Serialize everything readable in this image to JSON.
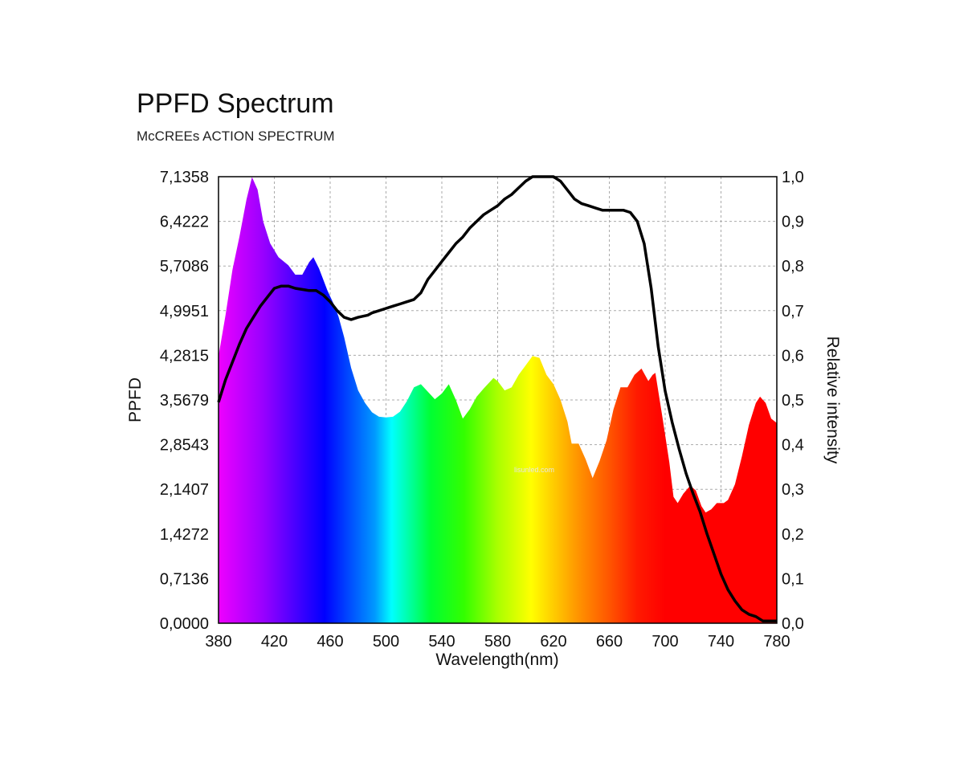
{
  "title": "PPFD Spectrum",
  "subtitle": "McCREEs ACTION SPECTRUM",
  "watermark": "lisunled.com",
  "chart_data": {
    "type": "area",
    "xlabel": "Wavelength(nm)",
    "ylabel": "PPFD",
    "y2label": "Relative intensity",
    "xlim": [
      380,
      780
    ],
    "ylim": [
      0,
      7.1358
    ],
    "y2lim": [
      0,
      1.0
    ],
    "grid": true,
    "x_ticks": [
      "380",
      "420",
      "460",
      "500",
      "540",
      "580",
      "620",
      "660",
      "700",
      "740",
      "780"
    ],
    "y_ticks": [
      "0,0000",
      "0,7136",
      "1,4272",
      "2,1407",
      "2,8543",
      "3,5679",
      "4,2815",
      "4,9951",
      "5,7086",
      "6,4222",
      "7,1358"
    ],
    "y2_ticks": [
      "0,0",
      "0,1",
      "0,2",
      "0,3",
      "0,4",
      "0,5",
      "0,6",
      "0,7",
      "0,8",
      "0,9",
      "1,0"
    ],
    "series": [
      {
        "axis": "left",
        "fill": "visible-spectrum",
        "points": [
          [
            380,
            4.27
          ],
          [
            385,
            4.92
          ],
          [
            390,
            5.65
          ],
          [
            395,
            6.18
          ],
          [
            400,
            6.77
          ],
          [
            404,
            7.13
          ],
          [
            408,
            6.93
          ],
          [
            412,
            6.42
          ],
          [
            417,
            6.07
          ],
          [
            423,
            5.85
          ],
          [
            430,
            5.72
          ],
          [
            435,
            5.57
          ],
          [
            440,
            5.57
          ],
          [
            445,
            5.77
          ],
          [
            448,
            5.85
          ],
          [
            452,
            5.67
          ],
          [
            458,
            5.32
          ],
          [
            463,
            5.08
          ],
          [
            466,
            4.9
          ],
          [
            470,
            4.57
          ],
          [
            475,
            4.08
          ],
          [
            480,
            3.72
          ],
          [
            485,
            3.52
          ],
          [
            490,
            3.37
          ],
          [
            495,
            3.3
          ],
          [
            500,
            3.29
          ],
          [
            505,
            3.3
          ],
          [
            510,
            3.38
          ],
          [
            515,
            3.55
          ],
          [
            520,
            3.77
          ],
          [
            525,
            3.82
          ],
          [
            530,
            3.7
          ],
          [
            535,
            3.58
          ],
          [
            540,
            3.67
          ],
          [
            545,
            3.82
          ],
          [
            550,
            3.57
          ],
          [
            555,
            3.27
          ],
          [
            560,
            3.42
          ],
          [
            565,
            3.62
          ],
          [
            570,
            3.75
          ],
          [
            577,
            3.92
          ],
          [
            580,
            3.87
          ],
          [
            585,
            3.72
          ],
          [
            590,
            3.77
          ],
          [
            595,
            3.97
          ],
          [
            600,
            4.12
          ],
          [
            605,
            4.27
          ],
          [
            610,
            4.24
          ],
          [
            615,
            3.97
          ],
          [
            620,
            3.82
          ],
          [
            625,
            3.57
          ],
          [
            630,
            3.22
          ],
          [
            633,
            2.87
          ],
          [
            638,
            2.87
          ],
          [
            643,
            2.62
          ],
          [
            648,
            2.32
          ],
          [
            653,
            2.59
          ],
          [
            658,
            2.92
          ],
          [
            663,
            3.42
          ],
          [
            668,
            3.77
          ],
          [
            673,
            3.77
          ],
          [
            678,
            3.97
          ],
          [
            683,
            4.07
          ],
          [
            688,
            3.87
          ],
          [
            691,
            3.97
          ],
          [
            693,
            4.0
          ],
          [
            698,
            3.3
          ],
          [
            703,
            2.57
          ],
          [
            706,
            2.02
          ],
          [
            709,
            1.92
          ],
          [
            713,
            2.07
          ],
          [
            718,
            2.2
          ],
          [
            722,
            2.12
          ],
          [
            726,
            1.87
          ],
          [
            729,
            1.77
          ],
          [
            733,
            1.82
          ],
          [
            737,
            1.92
          ],
          [
            742,
            1.92
          ],
          [
            745,
            1.97
          ],
          [
            750,
            2.22
          ],
          [
            755,
            2.67
          ],
          [
            760,
            3.17
          ],
          [
            765,
            3.52
          ],
          [
            768,
            3.62
          ],
          [
            772,
            3.52
          ],
          [
            776,
            3.27
          ],
          [
            780,
            3.2
          ]
        ]
      },
      {
        "axis": "right",
        "stroke": "#000000",
        "points": [
          [
            380,
            0.495
          ],
          [
            385,
            0.545
          ],
          [
            390,
            0.585
          ],
          [
            395,
            0.625
          ],
          [
            400,
            0.66
          ],
          [
            405,
            0.685
          ],
          [
            410,
            0.71
          ],
          [
            415,
            0.73
          ],
          [
            420,
            0.75
          ],
          [
            425,
            0.755
          ],
          [
            430,
            0.755
          ],
          [
            435,
            0.75
          ],
          [
            445,
            0.745
          ],
          [
            450,
            0.745
          ],
          [
            455,
            0.735
          ],
          [
            460,
            0.72
          ],
          [
            465,
            0.7
          ],
          [
            470,
            0.685
          ],
          [
            475,
            0.68
          ],
          [
            480,
            0.685
          ],
          [
            487,
            0.69
          ],
          [
            490,
            0.695
          ],
          [
            495,
            0.7
          ],
          [
            500,
            0.705
          ],
          [
            505,
            0.71
          ],
          [
            510,
            0.715
          ],
          [
            515,
            0.72
          ],
          [
            520,
            0.725
          ],
          [
            525,
            0.74
          ],
          [
            530,
            0.77
          ],
          [
            535,
            0.79
          ],
          [
            540,
            0.81
          ],
          [
            545,
            0.83
          ],
          [
            550,
            0.85
          ],
          [
            555,
            0.865
          ],
          [
            560,
            0.885
          ],
          [
            565,
            0.9
          ],
          [
            570,
            0.915
          ],
          [
            575,
            0.925
          ],
          [
            580,
            0.935
          ],
          [
            585,
            0.95
          ],
          [
            590,
            0.96
          ],
          [
            595,
            0.975
          ],
          [
            600,
            0.99
          ],
          [
            605,
            1.0
          ],
          [
            615,
            1.0
          ],
          [
            620,
            1.0
          ],
          [
            625,
            0.99
          ],
          [
            630,
            0.97
          ],
          [
            635,
            0.95
          ],
          [
            640,
            0.94
          ],
          [
            645,
            0.935
          ],
          [
            650,
            0.93
          ],
          [
            655,
            0.925
          ],
          [
            660,
            0.925
          ],
          [
            665,
            0.925
          ],
          [
            670,
            0.925
          ],
          [
            675,
            0.92
          ],
          [
            680,
            0.9
          ],
          [
            685,
            0.85
          ],
          [
            690,
            0.75
          ],
          [
            695,
            0.62
          ],
          [
            700,
            0.52
          ],
          [
            705,
            0.45
          ],
          [
            710,
            0.39
          ],
          [
            715,
            0.335
          ],
          [
            720,
            0.29
          ],
          [
            725,
            0.25
          ],
          [
            730,
            0.2
          ],
          [
            735,
            0.155
          ],
          [
            740,
            0.11
          ],
          [
            745,
            0.075
          ],
          [
            750,
            0.05
          ],
          [
            755,
            0.03
          ],
          [
            760,
            0.02
          ],
          [
            765,
            0.015
          ],
          [
            770,
            0.005
          ],
          [
            775,
            0.005
          ],
          [
            780,
            0.005
          ]
        ]
      }
    ]
  }
}
